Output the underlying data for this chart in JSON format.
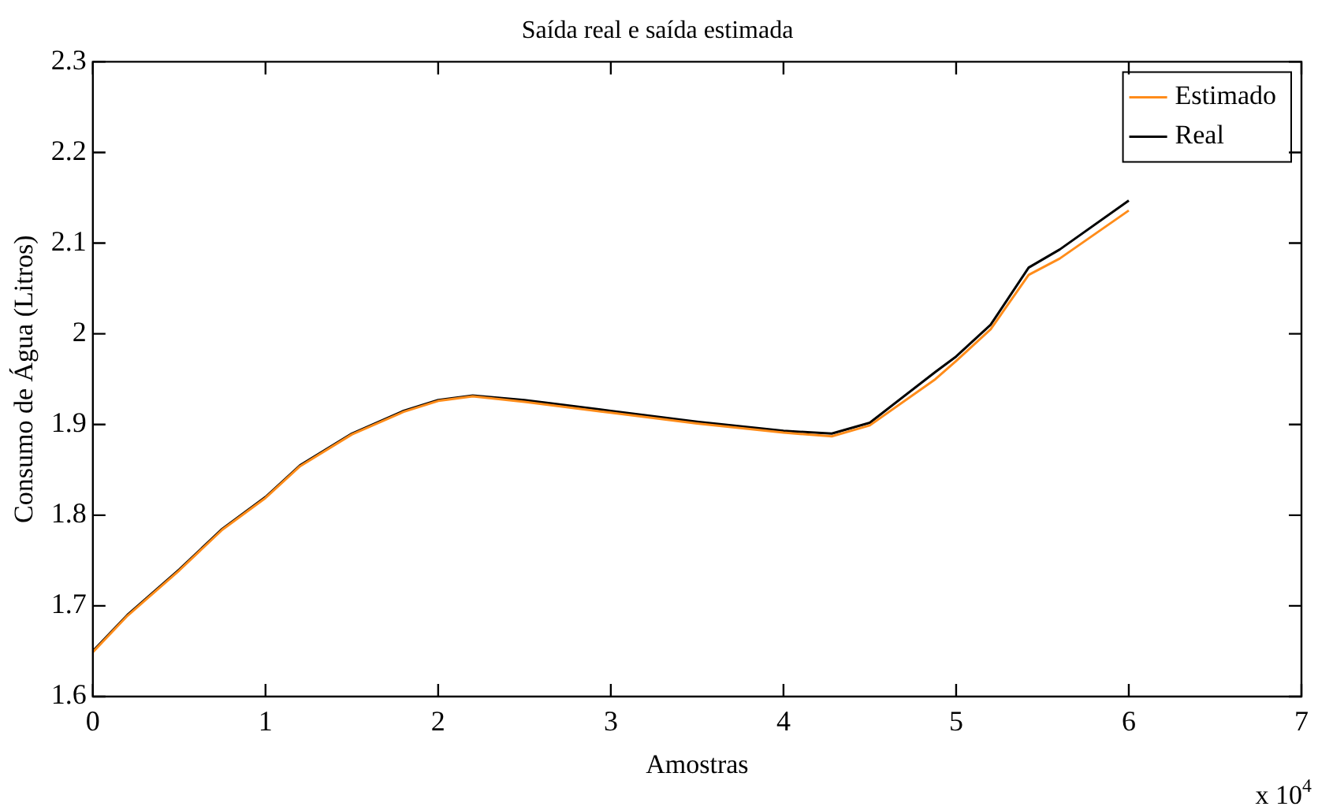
{
  "chart_data": {
    "type": "line",
    "title": "Saída real e saída estimada",
    "xlabel": "Amostras",
    "ylabel": "Consumo de Água (Litros)",
    "xlim": [
      0,
      7
    ],
    "xticks": [
      0,
      1,
      2,
      3,
      4,
      5,
      6,
      7
    ],
    "ylim": [
      1.6,
      2.3
    ],
    "yticks": [
      1.6,
      1.7,
      1.8,
      1.9,
      2,
      2.1,
      2.2,
      2.3
    ],
    "grid": false,
    "legend": "top right",
    "marker": "none",
    "line_style": "solid",
    "annotations": [
      "x 10$^{4}$"
    ],
    "series": [
      {
        "name": "Estimado",
        "color": "#ff8c1a",
        "x": [
          0,
          0.2,
          0.5,
          0.75,
          1.0,
          1.2,
          1.5,
          1.8,
          2.0,
          2.2,
          2.5,
          3.0,
          3.5,
          4.0,
          4.28,
          4.5,
          4.88,
          5.0,
          5.2,
          5.42,
          5.6,
          6.0
        ],
        "values": [
          1.649,
          1.689,
          1.739,
          1.784,
          1.819,
          1.854,
          1.889,
          1.914,
          1.926,
          1.931,
          1.925,
          1.913,
          1.901,
          1.891,
          1.887,
          1.899,
          1.95,
          1.97,
          2.005,
          2.065,
          2.083,
          2.136
        ]
      },
      {
        "name": "Real",
        "color": "#000000",
        "x": [
          0,
          0.2,
          0.5,
          0.75,
          1.0,
          1.2,
          1.5,
          1.8,
          2.0,
          2.2,
          2.5,
          3.0,
          3.5,
          4.0,
          4.28,
          4.5,
          4.88,
          5.0,
          5.2,
          5.42,
          5.6,
          6.0
        ],
        "values": [
          1.65,
          1.69,
          1.74,
          1.785,
          1.82,
          1.855,
          1.89,
          1.915,
          1.927,
          1.932,
          1.927,
          1.915,
          1.903,
          1.893,
          1.89,
          1.902,
          1.958,
          1.975,
          2.01,
          2.073,
          2.093,
          2.147
        ]
      }
    ]
  }
}
